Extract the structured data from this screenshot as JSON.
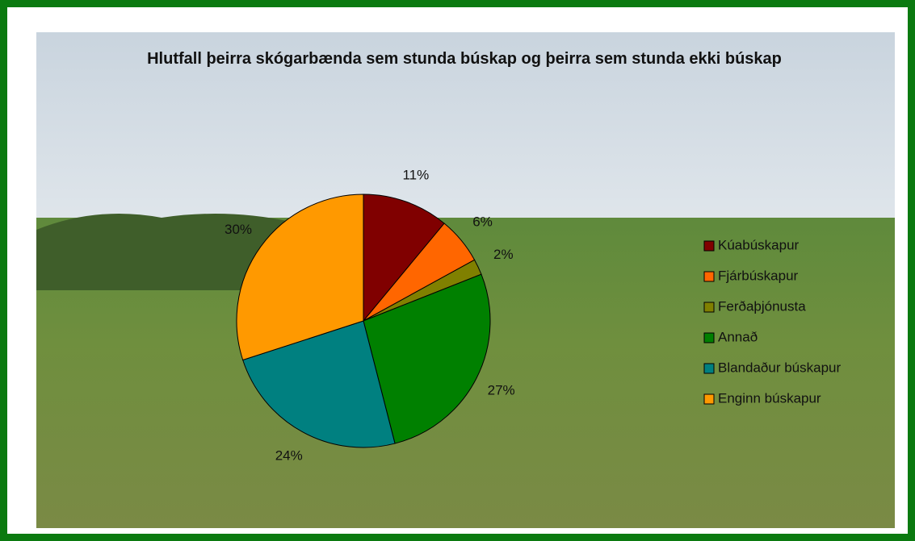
{
  "chart_data": {
    "type": "pie",
    "title": "Hlutfall þeirra skógarbænda sem stunda búskap og þeirra sem stunda ekki búskap",
    "categories": [
      "Kúabúskapur",
      "Fjárbúskapur",
      "Ferðaþjónusta",
      "Annað",
      "Blandaður búskapur",
      "Enginn búskapur"
    ],
    "values": [
      11,
      6,
      2,
      27,
      24,
      30
    ],
    "value_labels": [
      "11%",
      "6%",
      "2%",
      "27%",
      "24%",
      "30%"
    ],
    "colors": [
      "#800000",
      "#ff6600",
      "#808000",
      "#008000",
      "#008080",
      "#ff9900"
    ],
    "legend": "right"
  }
}
